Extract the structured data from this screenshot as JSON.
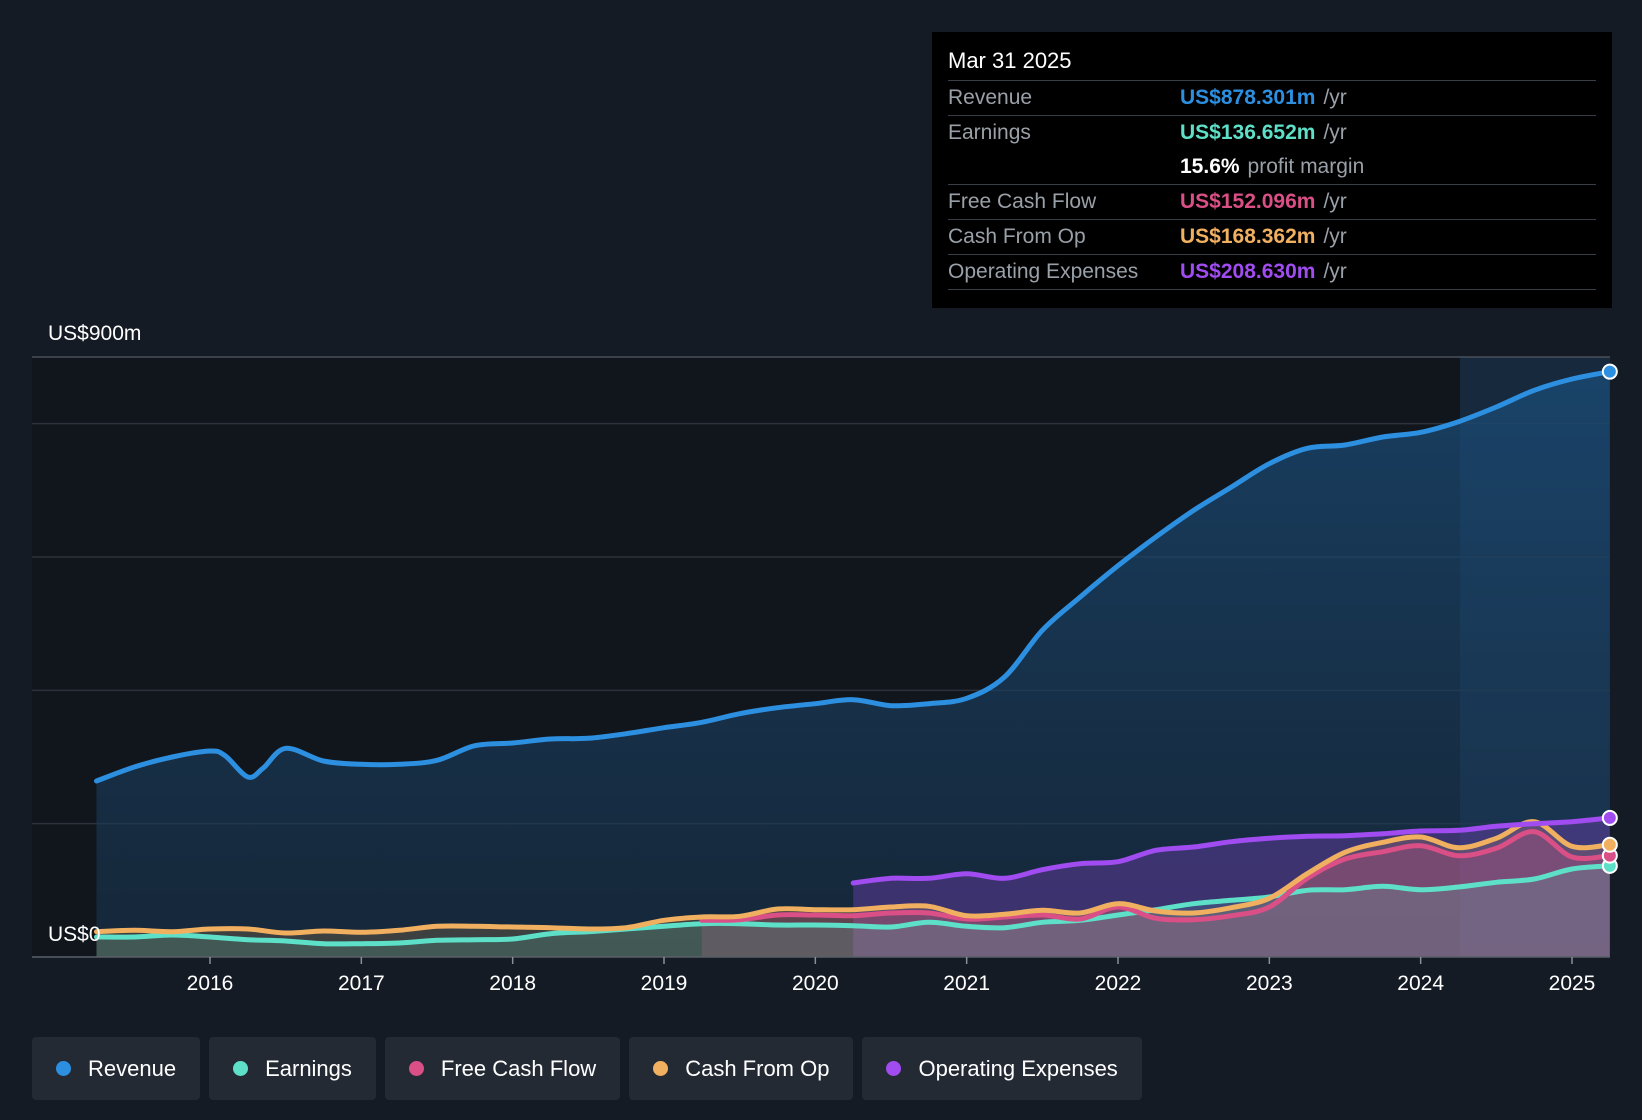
{
  "tooltip": {
    "date": "Mar 31 2025",
    "rows": [
      {
        "label": "Revenue",
        "value": "US$878.301m",
        "unit": "/yr",
        "color": "#2d8fe0"
      },
      {
        "label": "Earnings",
        "value": "US$136.652m",
        "unit": "/yr",
        "color": "#5ee0c8"
      },
      {
        "label": "Free Cash Flow",
        "value": "US$152.096m",
        "unit": "/yr",
        "color": "#d94f86"
      },
      {
        "label": "Cash From Op",
        "value": "US$168.362m",
        "unit": "/yr",
        "color": "#f0b060"
      },
      {
        "label": "Operating Expenses",
        "value": "US$208.630m",
        "unit": "/yr",
        "color": "#a04cf0"
      }
    ],
    "margin_value": "15.6%",
    "margin_label": "profit margin"
  },
  "legend": [
    {
      "label": "Revenue",
      "color": "#2d8fe0"
    },
    {
      "label": "Earnings",
      "color": "#5ee0c8"
    },
    {
      "label": "Free Cash Flow",
      "color": "#d94f86"
    },
    {
      "label": "Cash From Op",
      "color": "#f0b060"
    },
    {
      "label": "Operating Expenses",
      "color": "#a04cf0"
    }
  ],
  "chart_data": {
    "type": "area",
    "title": "",
    "ylim": [
      0,
      900
    ],
    "y_top_label": "US$900m",
    "y_bottom_label": "US$0",
    "grid": true,
    "x_ticks": [
      2016,
      2017,
      2018,
      2019,
      2020,
      2021,
      2022,
      2023,
      2024,
      2025
    ],
    "series": [
      {
        "name": "Revenue",
        "color": "#2d8fe0",
        "points": [
          [
            2015.25,
            264
          ],
          [
            2015.5,
            285
          ],
          [
            2015.75,
            300
          ],
          [
            2016.0,
            309
          ],
          [
            2016.1,
            302
          ],
          [
            2016.25,
            270
          ],
          [
            2016.35,
            283
          ],
          [
            2016.5,
            313
          ],
          [
            2016.75,
            294
          ],
          [
            2017.0,
            289
          ],
          [
            2017.25,
            289
          ],
          [
            2017.5,
            295
          ],
          [
            2017.75,
            317
          ],
          [
            2018.0,
            321
          ],
          [
            2018.25,
            327
          ],
          [
            2018.5,
            328
          ],
          [
            2018.75,
            335
          ],
          [
            2019.0,
            344
          ],
          [
            2019.25,
            352
          ],
          [
            2019.5,
            365
          ],
          [
            2019.75,
            374
          ],
          [
            2020.0,
            380
          ],
          [
            2020.25,
            386
          ],
          [
            2020.5,
            377
          ],
          [
            2020.75,
            380
          ],
          [
            2021.0,
            388
          ],
          [
            2021.25,
            420
          ],
          [
            2021.5,
            490
          ],
          [
            2021.75,
            540
          ],
          [
            2022.0,
            587
          ],
          [
            2022.25,
            630
          ],
          [
            2022.5,
            670
          ],
          [
            2022.75,
            705
          ],
          [
            2023.0,
            740
          ],
          [
            2023.25,
            763
          ],
          [
            2023.5,
            768
          ],
          [
            2023.75,
            780
          ],
          [
            2024.0,
            787
          ],
          [
            2024.25,
            803
          ],
          [
            2024.5,
            825
          ],
          [
            2024.75,
            850
          ],
          [
            2025.0,
            867
          ],
          [
            2025.25,
            878
          ]
        ]
      },
      {
        "name": "Earnings",
        "color": "#5ee0c8",
        "points": [
          [
            2015.25,
            30
          ],
          [
            2015.5,
            30
          ],
          [
            2015.75,
            33
          ],
          [
            2016.0,
            30
          ],
          [
            2016.25,
            26
          ],
          [
            2016.5,
            24
          ],
          [
            2016.75,
            20
          ],
          [
            2017.0,
            20
          ],
          [
            2017.25,
            21
          ],
          [
            2017.5,
            25
          ],
          [
            2017.75,
            26
          ],
          [
            2018.0,
            27
          ],
          [
            2018.25,
            35
          ],
          [
            2018.5,
            38
          ],
          [
            2018.75,
            42
          ],
          [
            2019.0,
            46
          ],
          [
            2019.25,
            50
          ],
          [
            2019.5,
            50
          ],
          [
            2019.75,
            48
          ],
          [
            2020.0,
            48
          ],
          [
            2020.25,
            47
          ],
          [
            2020.5,
            45
          ],
          [
            2020.75,
            52
          ],
          [
            2021.0,
            46
          ],
          [
            2021.25,
            44
          ],
          [
            2021.5,
            52
          ],
          [
            2021.75,
            55
          ],
          [
            2022.0,
            63
          ],
          [
            2022.25,
            71
          ],
          [
            2022.5,
            80
          ],
          [
            2022.75,
            85
          ],
          [
            2023.0,
            90
          ],
          [
            2023.25,
            100
          ],
          [
            2023.5,
            101
          ],
          [
            2023.75,
            106
          ],
          [
            2024.0,
            101
          ],
          [
            2024.25,
            105
          ],
          [
            2024.5,
            112
          ],
          [
            2024.75,
            117
          ],
          [
            2025.0,
            132
          ],
          [
            2025.25,
            136.652
          ]
        ]
      },
      {
        "name": "Free Cash Flow",
        "color": "#d94f86",
        "points": [
          [
            2019.25,
            55
          ],
          [
            2019.5,
            56
          ],
          [
            2019.75,
            63
          ],
          [
            2020.0,
            63
          ],
          [
            2020.25,
            62
          ],
          [
            2020.5,
            66
          ],
          [
            2020.75,
            66
          ],
          [
            2021.0,
            57
          ],
          [
            2021.25,
            60
          ],
          [
            2021.5,
            63
          ],
          [
            2021.75,
            57
          ],
          [
            2022.0,
            75
          ],
          [
            2022.25,
            58
          ],
          [
            2022.5,
            56
          ],
          [
            2022.75,
            62
          ],
          [
            2023.0,
            75
          ],
          [
            2023.25,
            118
          ],
          [
            2023.5,
            147
          ],
          [
            2023.75,
            158
          ],
          [
            2024.0,
            167
          ],
          [
            2024.25,
            152
          ],
          [
            2024.5,
            163
          ],
          [
            2024.75,
            188
          ],
          [
            2025.0,
            150
          ],
          [
            2025.25,
            152.096
          ]
        ]
      },
      {
        "name": "Cash From Op",
        "color": "#f0b060",
        "points": [
          [
            2015.25,
            38
          ],
          [
            2015.5,
            40
          ],
          [
            2015.75,
            38
          ],
          [
            2016.0,
            42
          ],
          [
            2016.25,
            42
          ],
          [
            2016.5,
            36
          ],
          [
            2016.75,
            39
          ],
          [
            2017.0,
            37
          ],
          [
            2017.25,
            40
          ],
          [
            2017.5,
            46
          ],
          [
            2017.75,
            46
          ],
          [
            2018.0,
            45
          ],
          [
            2018.25,
            44
          ],
          [
            2018.5,
            42
          ],
          [
            2018.75,
            44
          ],
          [
            2019.0,
            55
          ],
          [
            2019.25,
            60
          ],
          [
            2019.5,
            61
          ],
          [
            2019.75,
            72
          ],
          [
            2020.0,
            71
          ],
          [
            2020.25,
            71
          ],
          [
            2020.5,
            75
          ],
          [
            2020.75,
            76
          ],
          [
            2021.0,
            62
          ],
          [
            2021.25,
            64
          ],
          [
            2021.5,
            70
          ],
          [
            2021.75,
            66
          ],
          [
            2022.0,
            80
          ],
          [
            2022.25,
            69
          ],
          [
            2022.5,
            66
          ],
          [
            2022.75,
            74
          ],
          [
            2023.0,
            88
          ],
          [
            2023.25,
            125
          ],
          [
            2023.5,
            157
          ],
          [
            2023.75,
            172
          ],
          [
            2024.0,
            180
          ],
          [
            2024.25,
            164
          ],
          [
            2024.5,
            178
          ],
          [
            2024.75,
            203
          ],
          [
            2025.0,
            166
          ],
          [
            2025.25,
            168.362
          ]
        ]
      },
      {
        "name": "Operating Expenses",
        "color": "#a04cf0",
        "points": [
          [
            2020.25,
            111
          ],
          [
            2020.5,
            118
          ],
          [
            2020.75,
            118
          ],
          [
            2021.0,
            125
          ],
          [
            2021.25,
            118
          ],
          [
            2021.5,
            131
          ],
          [
            2021.75,
            140
          ],
          [
            2022.0,
            143
          ],
          [
            2022.25,
            160
          ],
          [
            2022.5,
            165
          ],
          [
            2022.75,
            173
          ],
          [
            2023.0,
            178
          ],
          [
            2023.25,
            181
          ],
          [
            2023.5,
            182
          ],
          [
            2023.75,
            185
          ],
          [
            2024.0,
            189
          ],
          [
            2024.25,
            190
          ],
          [
            2024.5,
            196
          ],
          [
            2024.75,
            200
          ],
          [
            2025.0,
            203
          ],
          [
            2025.25,
            208.63
          ]
        ]
      }
    ]
  }
}
